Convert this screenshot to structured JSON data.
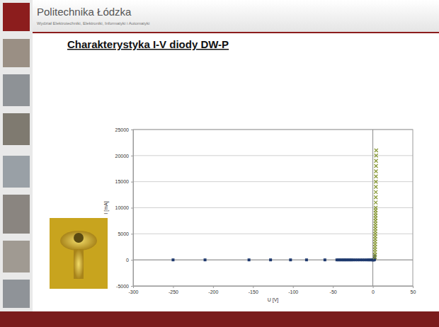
{
  "header": {
    "institution": "Politechnika Łódzka",
    "faculty": "Wydział Elektrotechniki, Elektroniki, Informatyki i Automatyki"
  },
  "chart_data": {
    "type": "scatter",
    "title": "Charakterystyka I-V diody DW-P",
    "xlabel": "U [V]",
    "ylabel": "I [mA]",
    "xlim": [
      -300,
      50
    ],
    "xticks": [
      -300,
      -250,
      -200,
      -150,
      -100,
      -50,
      0,
      50
    ],
    "ylim": [
      -5000,
      25000
    ],
    "yticks": [
      -5000,
      0,
      5000,
      10000,
      15000,
      20000,
      25000
    ],
    "grid": "y",
    "series": [
      {
        "color": "#1f3a6e",
        "marker": "square",
        "x": [
          -250,
          -210,
          -155,
          -128,
          -103,
          -83,
          -60,
          -45,
          -43,
          -41,
          -39,
          -37,
          -35,
          -33,
          -31,
          -29,
          -27,
          -25,
          -22,
          -19,
          -16,
          -13,
          -10,
          -7,
          -5,
          -3,
          -1,
          0,
          0.5,
          1,
          1.5,
          2,
          2.3,
          2.5
        ],
        "values": [
          0,
          0,
          0,
          0,
          0,
          0,
          0,
          0,
          0,
          0,
          0,
          0,
          0,
          0,
          0,
          0,
          0,
          0,
          0,
          0,
          0,
          0,
          0,
          0,
          0,
          0,
          0,
          0,
          0,
          0,
          5,
          50,
          300,
          800
        ]
      },
      {
        "color": "#8a9a3a",
        "marker": "x",
        "x": [
          2.6,
          2.65,
          2.7,
          2.75,
          2.8,
          2.85,
          2.9,
          2.95,
          3,
          3.05,
          3.1,
          3.15,
          3.2,
          3.25,
          3.3,
          3.35,
          3.4,
          3.45,
          3.5,
          3.55,
          3.6,
          3.65,
          3.7,
          3.75,
          3.8,
          3.85,
          3.9,
          3.95,
          4,
          4.1,
          4.2
        ],
        "values": [
          500,
          1000,
          1500,
          2000,
          2500,
          3000,
          3500,
          4000,
          4500,
          5000,
          5500,
          6000,
          6500,
          7000,
          7500,
          8000,
          8500,
          9000,
          9500,
          10000,
          11000,
          12000,
          13000,
          14000,
          15000,
          16000,
          17000,
          18000,
          19000,
          20000,
          21000
        ]
      }
    ]
  }
}
